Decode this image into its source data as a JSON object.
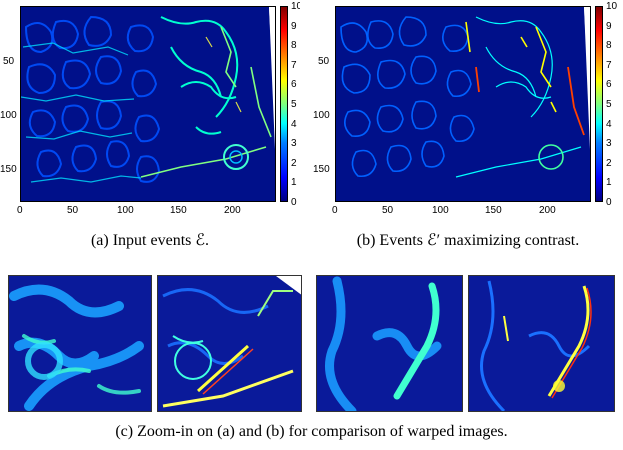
{
  "panels": {
    "a": {
      "caption": "(a) Input events ℰ.",
      "y_ticks": [
        "50",
        "100",
        "150"
      ],
      "x_ticks": [
        "0",
        "50",
        "100",
        "150",
        "200"
      ]
    },
    "b": {
      "caption": "(b) Events ℰ′ maximizing contrast.",
      "y_ticks": [
        "50",
        "100",
        "150"
      ],
      "x_ticks": [
        "0",
        "50",
        "100",
        "150",
        "200"
      ]
    }
  },
  "colorbar": {
    "ticks": [
      "10",
      "9",
      "8",
      "7",
      "6",
      "5",
      "4",
      "3",
      "2",
      "1",
      "0"
    ]
  },
  "zoom": {
    "caption": "(c) Zoom-in on (a) and (b) for comparison of warped images."
  },
  "colors": {
    "background": "#000080",
    "edge_low": "#0040ff",
    "edge_mid": "#00ffff",
    "edge_high": "#ffff00",
    "edge_peak": "#ff0000"
  }
}
